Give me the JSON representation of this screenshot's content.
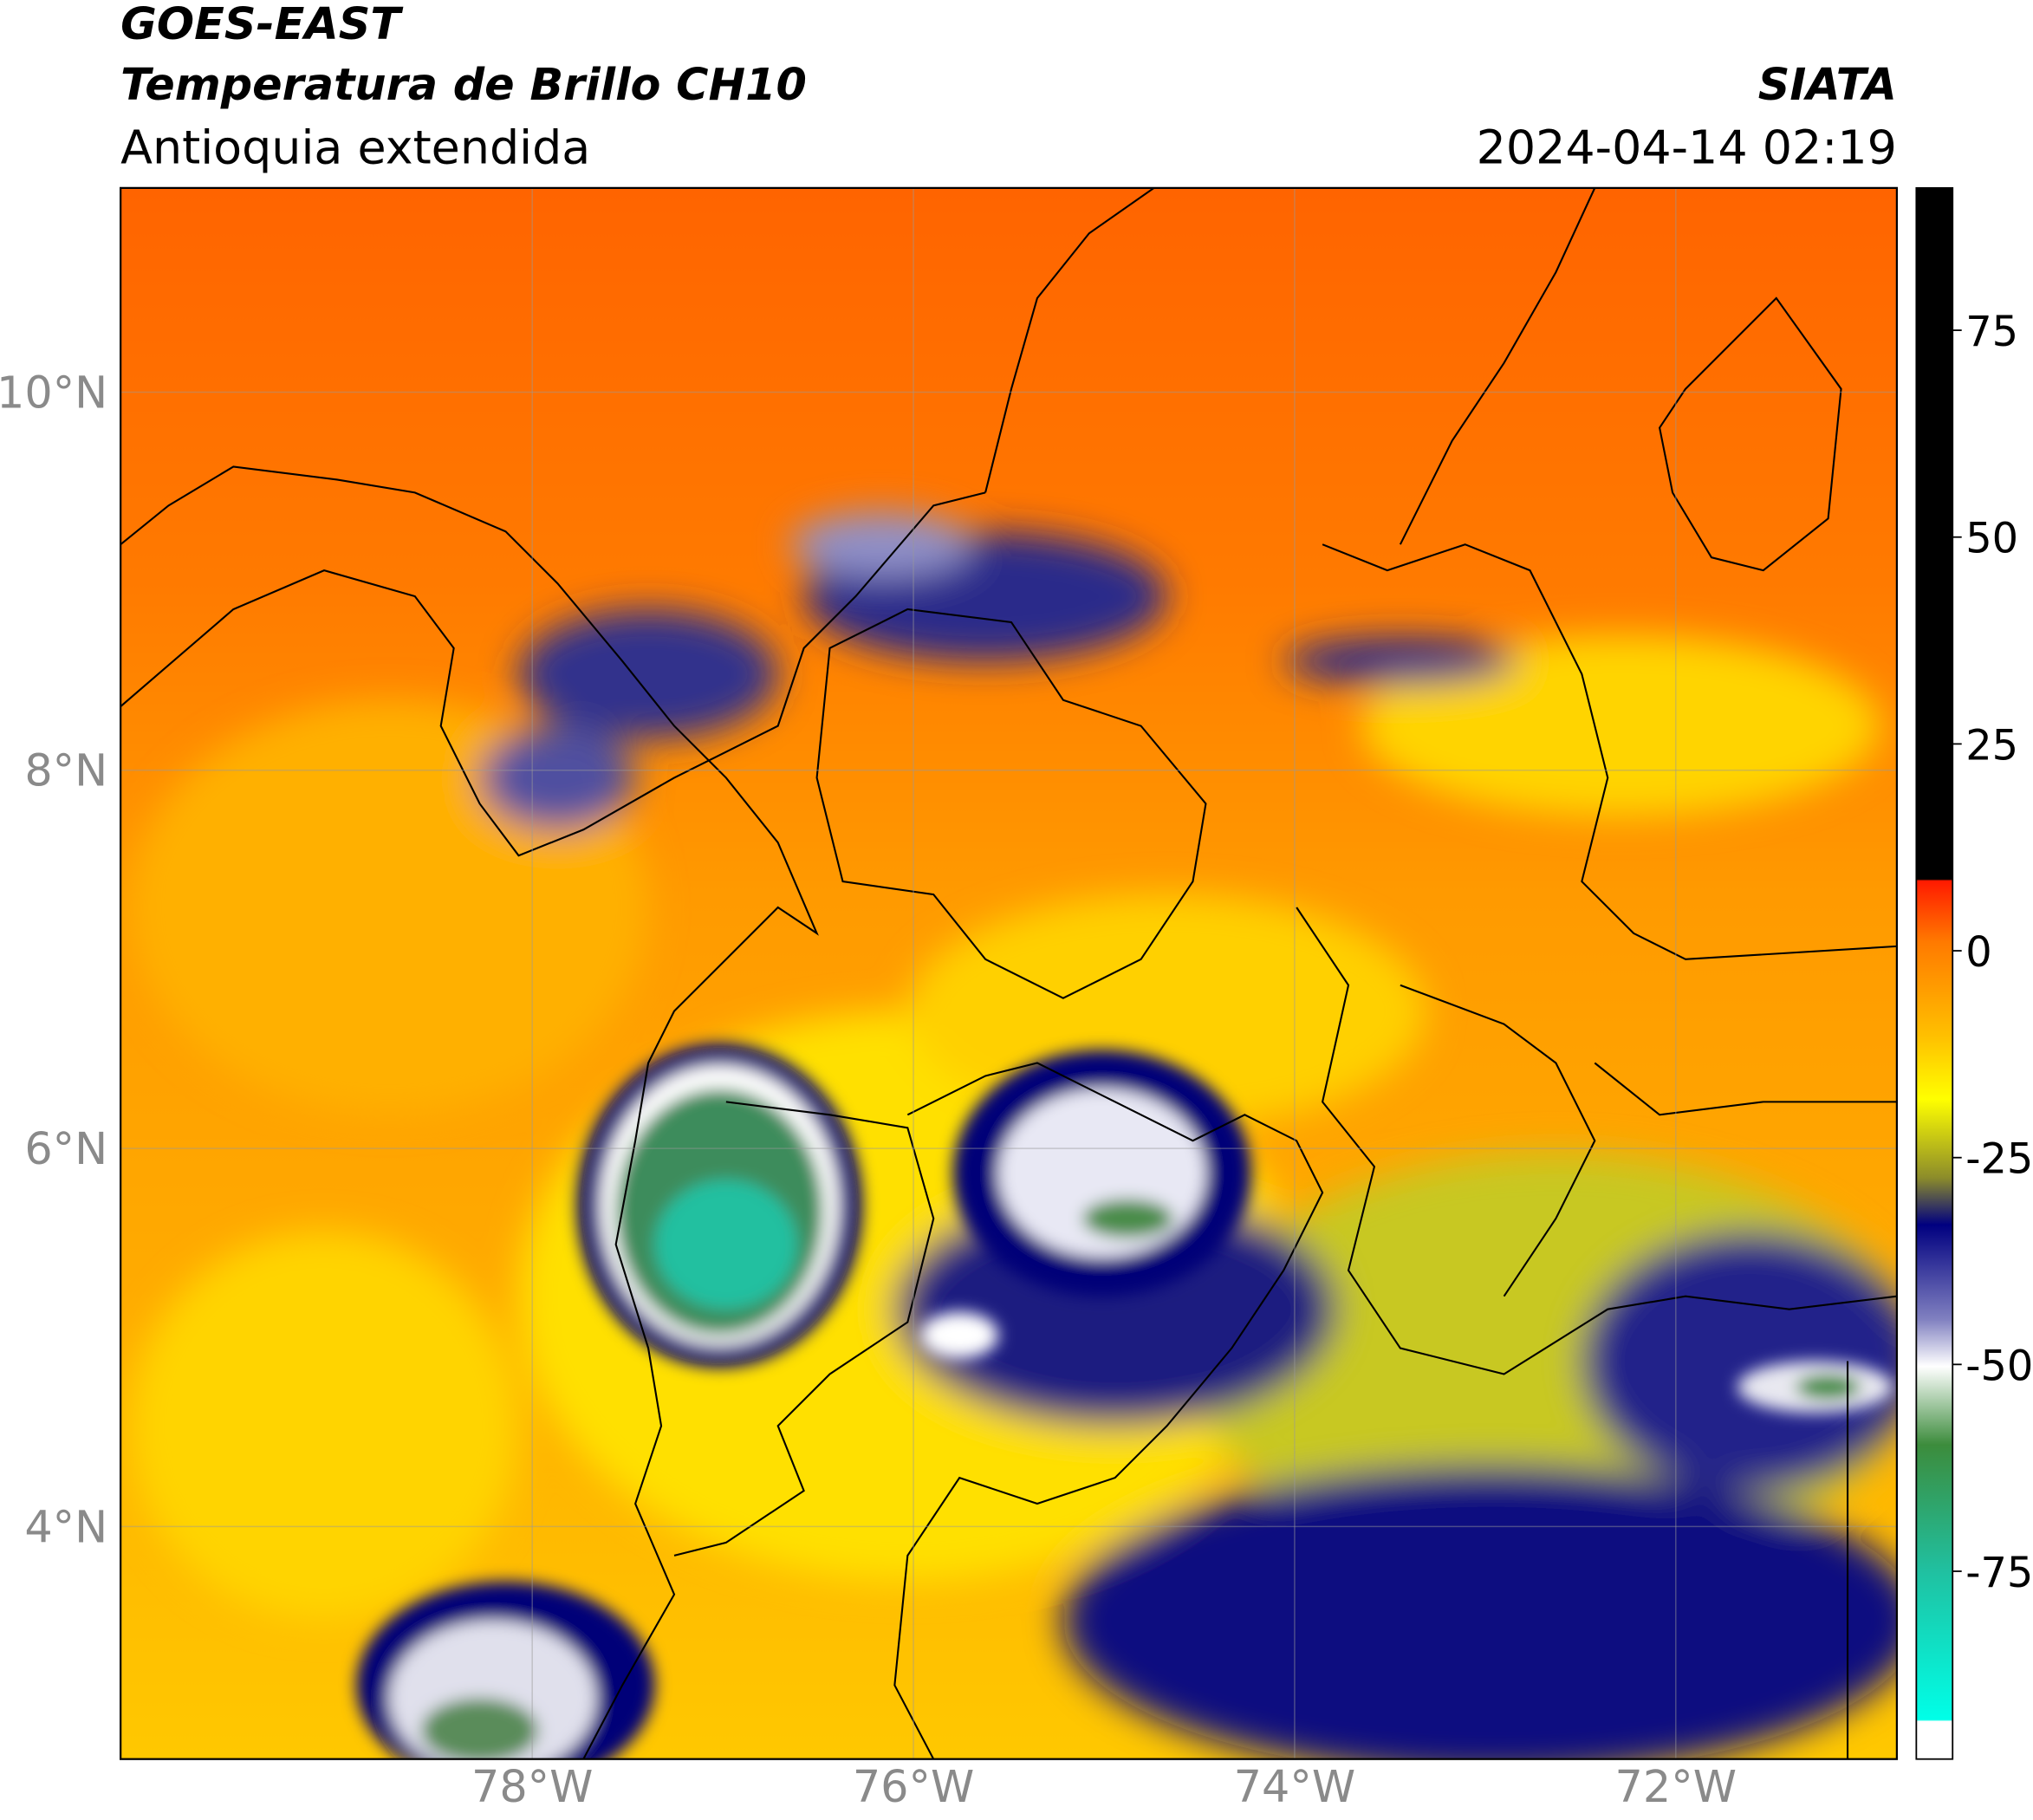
{
  "header": {
    "title": "GOES-EAST",
    "subtitle": "Temperatura de Brillo CH10",
    "region": "Antioquia extendida",
    "source": "SIATA",
    "timestamp": "2024-04-14 02:19"
  },
  "map": {
    "lon_lim": [
      -80.16,
      -70.84
    ],
    "lat_lim": [
      2.77,
      11.08
    ],
    "lon_ticks": [
      {
        "value": -78,
        "label": "78°W"
      },
      {
        "value": -76,
        "label": "76°W"
      },
      {
        "value": -74,
        "label": "74°W"
      },
      {
        "value": -72,
        "label": "72°W"
      }
    ],
    "lat_ticks": [
      {
        "value": 10,
        "label": "10°N"
      },
      {
        "value": 8,
        "label": "8°N"
      },
      {
        "value": 6,
        "label": "6°N"
      },
      {
        "value": 4,
        "label": "4°N"
      }
    ],
    "grid": true
  },
  "colorbar": {
    "lim": [
      -97.7,
      92.2
    ],
    "ticks": [
      75,
      50,
      25,
      0,
      -25,
      -50,
      -75
    ]
  }
}
